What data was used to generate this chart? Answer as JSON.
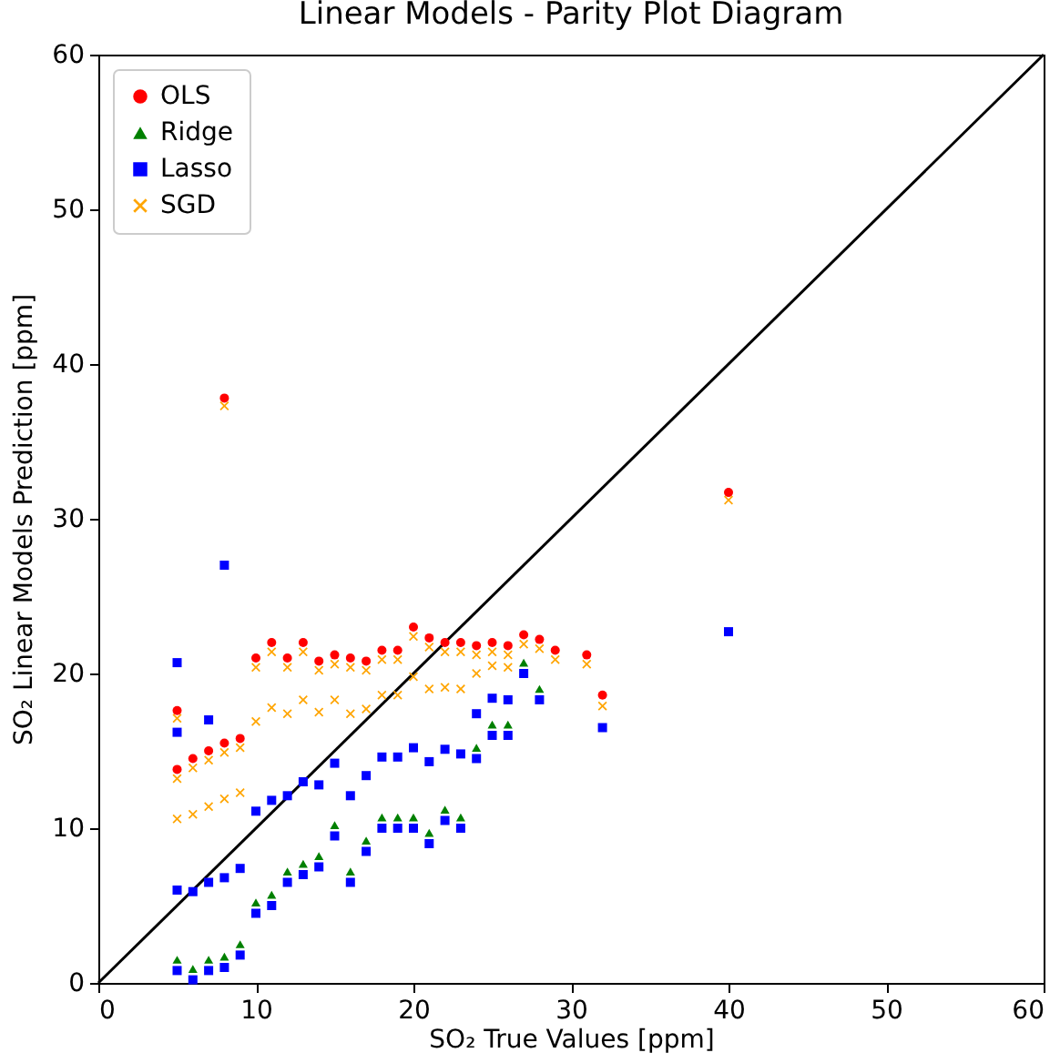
{
  "chart_data": {
    "type": "scatter",
    "title": "Linear Models - Parity Plot Diagram",
    "xlabel": "SO₂ True Values [ppm]",
    "ylabel": "SO₂ Linear Models Prediction [ppm]",
    "xlim": [
      0,
      60
    ],
    "ylim": [
      0,
      60
    ],
    "xticks": [
      0,
      10,
      20,
      30,
      40,
      50,
      60
    ],
    "yticks": [
      0,
      10,
      20,
      30,
      40,
      50,
      60
    ],
    "grid": false,
    "legend": "top left",
    "series": [
      {
        "type": "line",
        "color": "#000000",
        "x": [
          0,
          60
        ],
        "values": [
          0,
          60
        ]
      },
      {
        "name": "OLS",
        "color": "#ff0000",
        "marker": "circle",
        "x": [
          5,
          6,
          7,
          8,
          9,
          10,
          11,
          12,
          13,
          14,
          15,
          16,
          17,
          18,
          19,
          20,
          21,
          22,
          23,
          24,
          25,
          26,
          27,
          28,
          29,
          31,
          5,
          8,
          32,
          40
        ],
        "values": [
          13.8,
          14.5,
          15.0,
          15.5,
          15.8,
          21.0,
          22.0,
          21.0,
          22.0,
          20.8,
          21.2,
          21.0,
          20.8,
          21.5,
          21.5,
          23.0,
          22.3,
          22.0,
          22.0,
          21.8,
          22.0,
          21.8,
          22.5,
          22.2,
          21.5,
          21.2,
          17.6,
          37.8,
          18.6,
          31.7
        ]
      },
      {
        "name": "Ridge",
        "color": "#008000",
        "marker": "triangle",
        "x": [
          5,
          6,
          7,
          8,
          9,
          10,
          11,
          12,
          13,
          14,
          15,
          16,
          17,
          18,
          19,
          20,
          21,
          22,
          23,
          24,
          25,
          26,
          27,
          28
        ],
        "values": [
          1.5,
          0.9,
          1.5,
          1.7,
          2.5,
          5.2,
          5.7,
          7.2,
          7.7,
          8.2,
          10.2,
          7.2,
          9.2,
          10.7,
          10.7,
          10.7,
          9.7,
          11.2,
          10.7,
          15.2,
          16.7,
          16.7,
          20.7,
          19.0
        ]
      },
      {
        "name": "Lasso",
        "color": "#0000ff",
        "marker": "square",
        "x": [
          5,
          5,
          6,
          6,
          7,
          7,
          8,
          8,
          9,
          9,
          10,
          10,
          11,
          11,
          12,
          12,
          13,
          13,
          14,
          14,
          15,
          15,
          16,
          16,
          17,
          17,
          18,
          18,
          19,
          19,
          20,
          20,
          21,
          21,
          22,
          22,
          23,
          23,
          24,
          24,
          25,
          25,
          26,
          26,
          27,
          28,
          5,
          5,
          7,
          8,
          32,
          40
        ],
        "values": [
          0.8,
          6.0,
          0.2,
          5.9,
          0.8,
          6.5,
          1.0,
          6.8,
          1.8,
          7.4,
          4.5,
          11.1,
          5.0,
          11.8,
          6.5,
          12.1,
          7.0,
          13.0,
          7.5,
          12.8,
          9.5,
          14.2,
          6.5,
          12.1,
          8.5,
          13.4,
          10.0,
          14.6,
          10.0,
          14.6,
          10.0,
          15.2,
          9.0,
          14.3,
          10.5,
          15.1,
          10.0,
          14.8,
          14.5,
          17.4,
          16.0,
          18.4,
          16.0,
          18.3,
          20.0,
          18.3,
          16.2,
          20.7,
          17.0,
          27.0,
          16.5,
          22.7
        ]
      },
      {
        "name": "SGD",
        "color": "#ffa500",
        "marker": "cross",
        "x": [
          5,
          5,
          6,
          6,
          7,
          7,
          8,
          8,
          9,
          9,
          10,
          10,
          11,
          11,
          12,
          12,
          13,
          13,
          14,
          14,
          15,
          15,
          16,
          16,
          17,
          17,
          18,
          18,
          19,
          19,
          20,
          20,
          21,
          21,
          22,
          22,
          23,
          23,
          24,
          24,
          25,
          25,
          26,
          26,
          27,
          28,
          29,
          31,
          5,
          8,
          32,
          40
        ],
        "values": [
          13.2,
          10.6,
          13.9,
          10.9,
          14.4,
          11.4,
          14.9,
          11.9,
          15.2,
          12.3,
          20.4,
          16.9,
          21.4,
          17.8,
          20.4,
          17.4,
          21.4,
          18.3,
          20.2,
          17.5,
          20.6,
          18.3,
          20.4,
          17.4,
          20.2,
          17.7,
          20.9,
          18.6,
          20.9,
          18.6,
          22.4,
          19.8,
          21.7,
          19.0,
          21.4,
          19.1,
          21.4,
          19.0,
          21.2,
          20.0,
          21.4,
          20.5,
          21.2,
          20.4,
          21.9,
          21.6,
          20.9,
          20.6,
          17.1,
          37.3,
          17.9,
          31.2
        ]
      }
    ]
  }
}
